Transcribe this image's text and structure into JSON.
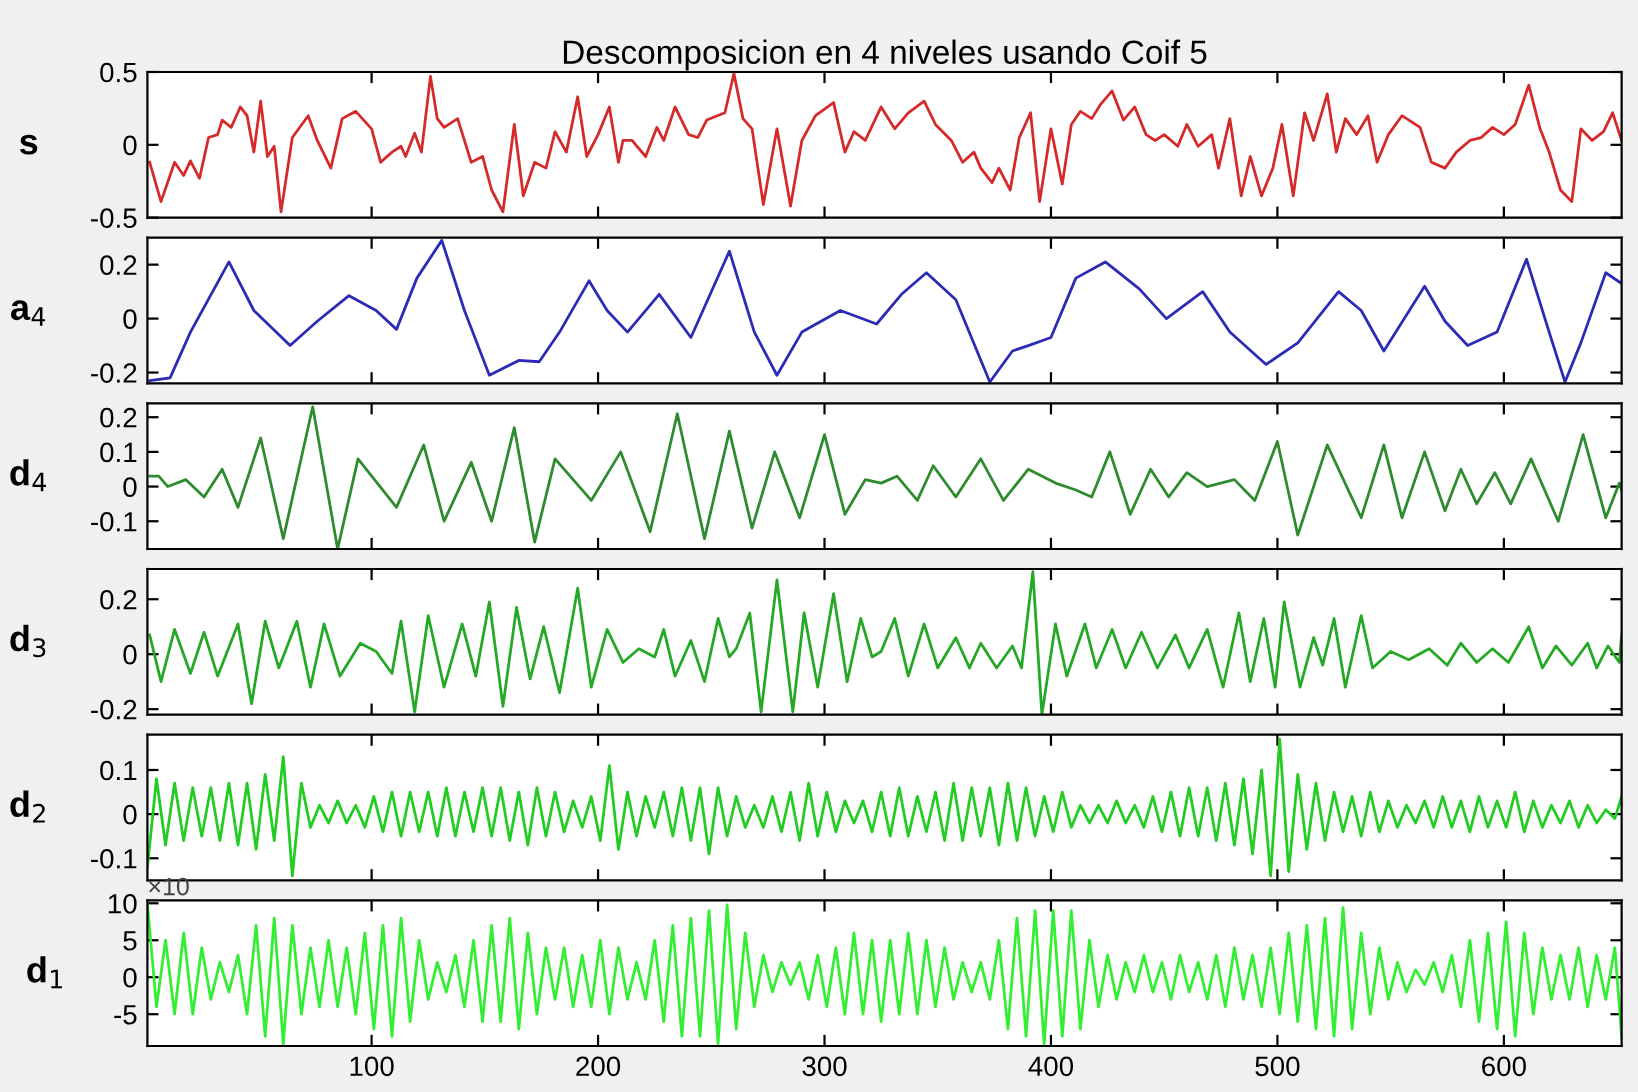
{
  "chart_data": [
    {
      "type": "line",
      "title": "Descomposicion en 4 niveles usando Coif 5",
      "ylabel": "s",
      "xlim": [
        1,
        652
      ],
      "xticks": [
        100,
        200,
        300,
        400,
        500,
        600
      ],
      "ylim": [
        -0.5,
        0.5
      ],
      "yticks": [
        -0.5,
        0,
        0.5
      ],
      "tick_labels": "y",
      "x": [
        2,
        7,
        13,
        17,
        20,
        24,
        28,
        32,
        34,
        38,
        42,
        45,
        48,
        51,
        54,
        57,
        60,
        65,
        72,
        76,
        82,
        87,
        93,
        100,
        104,
        109,
        113,
        115,
        119,
        122,
        126,
        129,
        132,
        138,
        144,
        149,
        153,
        158,
        163,
        167,
        172,
        177,
        181,
        186,
        191,
        195,
        200,
        205,
        209,
        211,
        215,
        221,
        226,
        229,
        234,
        240,
        244,
        248,
        256,
        260,
        264,
        268,
        273,
        279,
        285,
        290,
        296,
        304,
        309,
        313,
        318,
        325,
        331,
        337,
        344,
        349,
        356,
        361,
        366,
        369,
        374,
        377,
        382,
        386,
        391,
        395,
        400,
        405,
        409,
        413,
        418,
        422,
        427,
        432,
        437,
        442,
        446,
        450,
        456,
        460,
        465,
        471,
        474,
        479,
        484,
        488,
        493,
        498,
        502,
        507,
        512,
        516,
        522,
        526,
        530,
        535,
        540,
        544,
        549,
        555,
        563,
        568,
        574,
        579,
        585,
        590,
        595,
        600,
        605,
        611,
        616,
        620,
        625,
        630,
        634,
        639,
        644,
        648,
        652
      ],
      "series": [
        {
          "color": "#d42a2a",
          "values": [
            -0.12,
            -0.39,
            -0.12,
            -0.21,
            -0.11,
            -0.23,
            0.05,
            0.07,
            0.17,
            0.12,
            0.26,
            0.2,
            -0.05,
            0.3,
            -0.08,
            -0.01,
            -0.46,
            0.05,
            0.2,
            0.03,
            -0.16,
            0.18,
            0.23,
            0.11,
            -0.12,
            -0.05,
            -0.01,
            -0.08,
            0.08,
            -0.05,
            0.47,
            0.18,
            0.12,
            0.18,
            -0.12,
            -0.08,
            -0.31,
            -0.46,
            0.14,
            -0.35,
            -0.12,
            -0.16,
            0.09,
            -0.05,
            0.33,
            -0.08,
            0.07,
            0.26,
            -0.12,
            0.03,
            0.03,
            -0.08,
            0.12,
            0.03,
            0.26,
            0.07,
            0.05,
            0.17,
            0.22,
            0.49,
            0.18,
            0.11,
            -0.41,
            0.11,
            -0.42,
            0.03,
            0.2,
            0.29,
            -0.05,
            0.09,
            0.03,
            0.26,
            0.11,
            0.22,
            0.3,
            0.14,
            0.03,
            -0.12,
            -0.05,
            -0.16,
            -0.26,
            -0.16,
            -0.31,
            0.05,
            0.22,
            -0.39,
            0.11,
            -0.27,
            0.14,
            0.23,
            0.18,
            0.28,
            0.37,
            0.17,
            0.26,
            0.07,
            0.03,
            0.07,
            -0.01,
            0.14,
            -0.01,
            0.07,
            -0.16,
            0.18,
            -0.35,
            -0.08,
            -0.35,
            -0.16,
            0.14,
            -0.35,
            0.22,
            0.03,
            0.35,
            -0.05,
            0.18,
            0.07,
            0.2,
            -0.12,
            0.07,
            0.2,
            0.12,
            -0.12,
            -0.16,
            -0.05,
            0.03,
            0.05,
            0.12,
            0.07,
            0.14,
            0.41,
            0.11,
            -0.05,
            -0.31,
            -0.39,
            0.11,
            0.03,
            0.09,
            0.22,
            0.03
          ]
        }
      ]
    },
    {
      "type": "line",
      "ylabel": "a$_{4}$",
      "xlim": [
        1,
        652
      ],
      "xticks": [
        100,
        200,
        300,
        400,
        500,
        600
      ],
      "ylim": [
        -0.24,
        0.3
      ],
      "yticks": [
        -0.2,
        0,
        0.2
      ],
      "tick_labels": "y",
      "x": [
        2,
        11,
        20,
        37,
        48,
        64,
        76,
        90,
        102,
        111,
        120,
        131,
        141,
        152,
        165,
        174,
        183,
        196,
        204,
        213,
        227,
        241,
        258,
        269,
        279,
        290,
        307,
        323,
        334,
        345,
        358,
        373,
        383,
        390,
        400,
        411,
        424,
        439,
        451,
        467,
        479,
        495,
        509,
        527,
        537,
        547,
        565,
        574,
        584,
        597,
        610,
        620,
        627,
        634,
        645,
        652
      ],
      "series": [
        {
          "color": "#2b2bb5",
          "values": [
            -0.23,
            -0.22,
            -0.05,
            0.21,
            0.03,
            -0.1,
            -0.01,
            0.085,
            0.03,
            -0.04,
            0.15,
            0.29,
            0.03,
            -0.21,
            -0.155,
            -0.16,
            -0.05,
            0.14,
            0.03,
            -0.05,
            0.09,
            -0.07,
            0.25,
            -0.05,
            -0.21,
            -0.05,
            0.03,
            -0.02,
            0.09,
            0.17,
            0.07,
            -0.235,
            -0.12,
            -0.1,
            -0.07,
            0.15,
            0.21,
            0.11,
            0,
            0.1,
            -0.05,
            -0.17,
            -0.09,
            0.1,
            0.03,
            -0.12,
            0.12,
            -0.01,
            -0.1,
            -0.05,
            0.22,
            -0.05,
            -0.235,
            -0.09,
            0.17,
            0.13
          ]
        }
      ]
    },
    {
      "type": "line",
      "ylabel": "d$_{4}$",
      "xlim": [
        1,
        652
      ],
      "xticks": [
        100,
        200,
        300,
        400,
        500,
        600
      ],
      "ylim": [
        -0.18,
        0.24
      ],
      "yticks": [
        -0.1,
        0,
        0.1,
        0.2
      ],
      "tick_labels": "y",
      "x": [
        2,
        6,
        10,
        18,
        26,
        34,
        41,
        51,
        61,
        74,
        85,
        94,
        111,
        123,
        132,
        144,
        153,
        163,
        172,
        181,
        197,
        210,
        223,
        235,
        247,
        258,
        268,
        278,
        289,
        300,
        309,
        318,
        325,
        332,
        341,
        348,
        358,
        369,
        379,
        390,
        402,
        411,
        418,
        426,
        435,
        444,
        452,
        460,
        469,
        481,
        490,
        500,
        509,
        522,
        537,
        547,
        555,
        565,
        574,
        581,
        588,
        596,
        603,
        612,
        624,
        635,
        645,
        651,
        652
      ],
      "series": [
        {
          "color": "#2e8b2e",
          "values": [
            0.03,
            0.03,
            0,
            0.02,
            -0.03,
            0.05,
            -0.06,
            0.14,
            -0.15,
            0.23,
            -0.18,
            0.08,
            -0.06,
            0.12,
            -0.1,
            0.07,
            -0.1,
            0.17,
            -0.16,
            0.08,
            -0.04,
            0.1,
            -0.13,
            0.21,
            -0.15,
            0.16,
            -0.12,
            0.1,
            -0.09,
            0.15,
            -0.08,
            0.02,
            0.01,
            0.03,
            -0.04,
            0.06,
            -0.03,
            0.08,
            -0.04,
            0.05,
            0.01,
            -0.01,
            -0.03,
            0.1,
            -0.08,
            0.05,
            -0.03,
            0.04,
            0,
            0.02,
            -0.04,
            0.13,
            -0.14,
            0.12,
            -0.09,
            0.12,
            -0.09,
            0.1,
            -0.07,
            0.05,
            -0.05,
            0.04,
            -0.05,
            0.08,
            -0.1,
            0.15,
            -0.09,
            0.01,
            -0.01
          ]
        }
      ]
    },
    {
      "type": "line",
      "ylabel": "d$_{3}$",
      "xlim": [
        1,
        652
      ],
      "xticks": [
        100,
        200,
        300,
        400,
        500,
        600
      ],
      "ylim": [
        -0.22,
        0.31
      ],
      "yticks": [
        -0.2,
        0,
        0.2
      ],
      "tick_labels": "y",
      "x": [
        2,
        7,
        13,
        20,
        26,
        32,
        41,
        47,
        53,
        59,
        67,
        73,
        79,
        86,
        95,
        102,
        109,
        113,
        119,
        125,
        132,
        140,
        146,
        152,
        158,
        164,
        170,
        176,
        183,
        191,
        197,
        204,
        211,
        218,
        225,
        229,
        234,
        241,
        247,
        253,
        258,
        261,
        267,
        272,
        279,
        286,
        291,
        297,
        304,
        310,
        316,
        321,
        325,
        331,
        337,
        344,
        350,
        358,
        364,
        369,
        376,
        383,
        387,
        392,
        396,
        402,
        407,
        415,
        420,
        427,
        433,
        440,
        447,
        455,
        461,
        469,
        476,
        483,
        488,
        494,
        499,
        503,
        510,
        516,
        520,
        525,
        530,
        537,
        542,
        550,
        558,
        567,
        575,
        581,
        588,
        595,
        602,
        611,
        617,
        623,
        630,
        637,
        641,
        646,
        651,
        652
      ],
      "series": [
        {
          "color": "#25a825",
          "values": [
            0.07,
            -0.1,
            0.09,
            -0.07,
            0.08,
            -0.08,
            0.11,
            -0.18,
            0.12,
            -0.05,
            0.12,
            -0.12,
            0.11,
            -0.08,
            0.04,
            0.01,
            -0.07,
            0.12,
            -0.21,
            0.14,
            -0.12,
            0.11,
            -0.08,
            0.19,
            -0.19,
            0.17,
            -0.09,
            0.1,
            -0.14,
            0.24,
            -0.12,
            0.09,
            -0.03,
            0.02,
            -0.01,
            0.09,
            -0.08,
            0.05,
            -0.1,
            0.13,
            -0.01,
            0.02,
            0.15,
            -0.21,
            0.27,
            -0.21,
            0.15,
            -0.12,
            0.22,
            -0.1,
            0.13,
            -0.01,
            0.01,
            0.13,
            -0.08,
            0.11,
            -0.05,
            0.06,
            -0.05,
            0.04,
            -0.05,
            0.03,
            -0.05,
            0.3,
            -0.22,
            0.11,
            -0.08,
            0.11,
            -0.05,
            0.09,
            -0.05,
            0.08,
            -0.05,
            0.07,
            -0.05,
            0.09,
            -0.12,
            0.15,
            -0.1,
            0.13,
            -0.12,
            0.19,
            -0.12,
            0.06,
            -0.04,
            0.13,
            -0.12,
            0.14,
            -0.05,
            0.01,
            -0.02,
            0.02,
            -0.04,
            0.04,
            -0.03,
            0.02,
            -0.03,
            0.1,
            -0.05,
            0.03,
            -0.04,
            0.04,
            -0.05,
            0.03,
            -0.03,
            0.07
          ]
        }
      ]
    },
    {
      "type": "line",
      "ylabel": "d$_{2}$",
      "xlim": [
        1,
        652
      ],
      "xticks": [
        100,
        200,
        300,
        400,
        500,
        600
      ],
      "ylim": [
        -0.15,
        0.18
      ],
      "yticks": [
        -0.1,
        0,
        0.1
      ],
      "tick_labels": "y",
      "x": [
        1,
        5,
        9,
        13,
        17,
        21,
        25,
        29,
        33,
        37,
        41,
        45,
        49,
        53,
        57,
        61,
        65,
        69,
        73,
        77,
        81,
        85,
        89,
        93,
        97,
        101,
        105,
        109,
        113,
        117,
        121,
        125,
        129,
        133,
        137,
        141,
        145,
        149,
        153,
        157,
        161,
        165,
        169,
        173,
        177,
        181,
        185,
        189,
        193,
        197,
        201,
        205,
        209,
        213,
        217,
        221,
        225,
        229,
        233,
        237,
        241,
        245,
        249,
        253,
        257,
        261,
        265,
        269,
        273,
        277,
        281,
        285,
        289,
        293,
        297,
        301,
        305,
        309,
        313,
        317,
        321,
        325,
        329,
        333,
        337,
        341,
        345,
        349,
        353,
        357,
        361,
        365,
        369,
        373,
        377,
        381,
        385,
        389,
        393,
        397,
        401,
        405,
        409,
        413,
        417,
        421,
        425,
        429,
        433,
        437,
        441,
        445,
        449,
        453,
        457,
        461,
        465,
        469,
        473,
        477,
        481,
        485,
        489,
        493,
        497,
        501,
        505,
        509,
        513,
        517,
        521,
        525,
        529,
        533,
        537,
        541,
        545,
        549,
        553,
        557,
        561,
        565,
        569,
        573,
        577,
        581,
        585,
        589,
        593,
        597,
        601,
        605,
        609,
        613,
        617,
        621,
        625,
        629,
        633,
        637,
        641,
        645,
        649,
        652
      ],
      "series": [
        {
          "color": "#22cc22",
          "values": [
            -0.12,
            0.08,
            -0.07,
            0.07,
            -0.06,
            0.06,
            -0.05,
            0.06,
            -0.06,
            0.07,
            -0.07,
            0.07,
            -0.08,
            0.09,
            -0.06,
            0.13,
            -0.14,
            0.07,
            -0.03,
            0.02,
            -0.02,
            0.03,
            -0.02,
            0.02,
            -0.03,
            0.04,
            -0.04,
            0.05,
            -0.05,
            0.05,
            -0.04,
            0.05,
            -0.05,
            0.06,
            -0.05,
            0.05,
            -0.04,
            0.06,
            -0.05,
            0.06,
            -0.06,
            0.05,
            -0.07,
            0.06,
            -0.05,
            0.05,
            -0.04,
            0.03,
            -0.03,
            0.04,
            -0.06,
            0.11,
            -0.08,
            0.05,
            -0.05,
            0.04,
            -0.03,
            0.05,
            -0.05,
            0.06,
            -0.06,
            0.06,
            -0.09,
            0.06,
            -0.05,
            0.04,
            -0.03,
            0.02,
            -0.03,
            0.04,
            -0.04,
            0.05,
            -0.06,
            0.07,
            -0.05,
            0.05,
            -0.04,
            0.03,
            -0.02,
            0.03,
            -0.04,
            0.05,
            -0.05,
            0.06,
            -0.05,
            0.04,
            -0.04,
            0.05,
            -0.06,
            0.07,
            -0.06,
            0.06,
            -0.05,
            0.06,
            -0.07,
            0.07,
            -0.06,
            0.06,
            -0.05,
            0.04,
            -0.04,
            0.05,
            -0.03,
            0.02,
            -0.02,
            0.02,
            -0.02,
            0.03,
            -0.02,
            0.02,
            -0.03,
            0.04,
            -0.04,
            0.05,
            -0.05,
            0.06,
            -0.05,
            0.06,
            -0.06,
            0.07,
            -0.07,
            0.08,
            -0.09,
            0.1,
            -0.14,
            0.17,
            -0.13,
            0.09,
            -0.08,
            0.07,
            -0.06,
            0.05,
            -0.04,
            0.04,
            -0.05,
            0.05,
            -0.04,
            0.03,
            -0.03,
            0.02,
            -0.02,
            0.03,
            -0.03,
            0.04,
            -0.03,
            0.03,
            -0.04,
            0.04,
            -0.03,
            0.03,
            -0.03,
            0.05,
            -0.04,
            0.03,
            -0.03,
            0.02,
            -0.02,
            0.03,
            -0.03,
            0.02,
            -0.02,
            0.01,
            -0.01,
            0.04
          ]
        }
      ]
    },
    {
      "type": "line",
      "ylabel": "d$_{1}$",
      "annotations": [
        "×10"
      ],
      "xlim": [
        1,
        652
      ],
      "xticks": [
        100,
        200,
        300,
        400,
        500,
        600
      ],
      "ylim": [
        -9.3,
        10.4
      ],
      "yticks": [
        -5,
        0,
        5,
        10
      ],
      "x": [
        1,
        5,
        9,
        13,
        17,
        21,
        25,
        29,
        33,
        37,
        41,
        45,
        49,
        53,
        57,
        61,
        65,
        69,
        73,
        77,
        81,
        85,
        89,
        93,
        97,
        101,
        105,
        109,
        113,
        117,
        121,
        125,
        129,
        133,
        137,
        141,
        145,
        149,
        153,
        157,
        161,
        165,
        169,
        173,
        177,
        181,
        185,
        189,
        193,
        197,
        201,
        205,
        209,
        213,
        217,
        221,
        225,
        229,
        233,
        237,
        241,
        245,
        249,
        253,
        257,
        261,
        265,
        269,
        273,
        277,
        281,
        285,
        289,
        293,
        297,
        301,
        305,
        309,
        313,
        317,
        321,
        325,
        329,
        333,
        337,
        341,
        345,
        349,
        353,
        357,
        361,
        365,
        369,
        373,
        377,
        381,
        385,
        389,
        393,
        397,
        401,
        405,
        409,
        413,
        417,
        421,
        425,
        429,
        433,
        437,
        441,
        445,
        449,
        453,
        457,
        461,
        465,
        469,
        473,
        477,
        481,
        485,
        489,
        493,
        497,
        501,
        505,
        509,
        513,
        517,
        521,
        525,
        529,
        533,
        537,
        541,
        545,
        549,
        553,
        557,
        561,
        565,
        569,
        573,
        577,
        581,
        585,
        589,
        593,
        597,
        601,
        605,
        609,
        613,
        617,
        621,
        625,
        629,
        633,
        637,
        641,
        645,
        649,
        652
      ],
      "series": [
        {
          "color": "#33ee33",
          "values": [
            10,
            -4,
            5,
            -5,
            6,
            -5,
            4,
            -3,
            2,
            -2,
            3,
            -5,
            7,
            -8,
            8,
            -9,
            7,
            -5,
            4,
            -4,
            5,
            -4,
            4,
            -5,
            6,
            -7,
            7,
            -8,
            8,
            -6,
            5,
            -3,
            2,
            -2,
            3,
            -4,
            5,
            -6,
            7,
            -6,
            8,
            -7,
            6,
            -5,
            4,
            -3,
            4,
            -4,
            3,
            -4,
            5,
            -5,
            4,
            -3,
            2,
            -3,
            5,
            -6,
            7,
            -8,
            8,
            -8,
            9,
            -9,
            9.8,
            -7,
            6,
            -4,
            3,
            -2,
            2,
            -1,
            2,
            -3,
            3,
            -4,
            4,
            -5,
            6,
            -5,
            5,
            -6,
            5,
            -5,
            6,
            -5,
            5,
            -4,
            4,
            -3,
            2,
            -2,
            2,
            -3,
            5,
            -7,
            8,
            -8,
            9,
            -9,
            9,
            -8,
            9,
            -7,
            5,
            -4,
            3,
            -3,
            2,
            -2,
            3,
            -2,
            2,
            -3,
            3,
            -2,
            2,
            -3,
            3,
            -4,
            4,
            -3,
            3,
            -4,
            4,
            -5,
            6,
            -6,
            7,
            -7,
            8,
            -8,
            9.4,
            -7,
            6,
            -5,
            4,
            -3,
            2,
            -2,
            1,
            -1,
            2,
            -2,
            3,
            -4,
            5,
            -6,
            6,
            -7,
            7.5,
            -8,
            6,
            -5,
            4,
            -3,
            3,
            -3,
            4,
            -4,
            3,
            -3,
            4,
            -8
          ]
        }
      ]
    }
  ]
}
